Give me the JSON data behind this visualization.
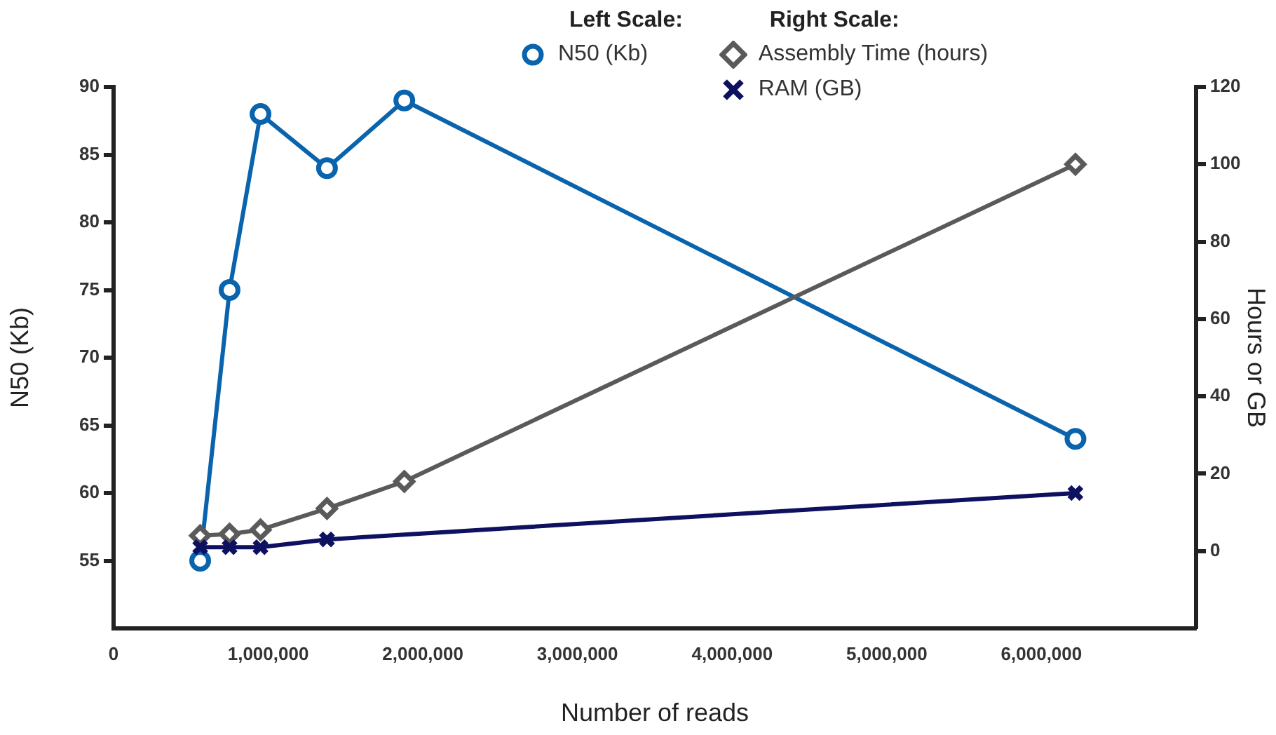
{
  "chart_data": {
    "type": "line",
    "xlabel": "Number of reads",
    "ylabel": "N50 (Kb)",
    "y2label": "Hours or GB",
    "annotations": [
      "Left Scale:",
      "Right Scale:"
    ],
    "xlim": [
      0,
      7000000
    ],
    "xticks": [
      {
        "value": 0,
        "label": "0"
      },
      {
        "value": 1000000,
        "label": "1,000,000"
      },
      {
        "value": 2000000,
        "label": "2,000,000"
      },
      {
        "value": 3000000,
        "label": "3,000,000"
      },
      {
        "value": 4000000,
        "label": "4,000,000"
      },
      {
        "value": 5000000,
        "label": "5,000,000"
      },
      {
        "value": 6000000,
        "label": "6,000,000"
      },
      {
        "value": 7000000,
        "label": null
      }
    ],
    "ylim": [
      50,
      90
    ],
    "yticks": [
      55,
      60,
      65,
      70,
      75,
      80,
      85,
      90
    ],
    "y2lim": [
      -20,
      120
    ],
    "y2ticks": [
      0,
      20,
      40,
      60,
      80,
      100,
      120
    ],
    "grid": false,
    "legend": "top",
    "series": [
      {
        "name": "N50 (Kb)",
        "color": "#0a64ad",
        "marker": "circle",
        "x": [
          560000,
          750000,
          950000,
          1380000,
          1880000,
          6220000
        ],
        "values": [
          55,
          75,
          88,
          84,
          89,
          64
        ]
      },
      {
        "name": "Assembly Time (hours)",
        "color": "#5a5a5a",
        "marker": "diamond",
        "axis": "y2",
        "x": [
          560000,
          750000,
          950000,
          1380000,
          1880000,
          6220000
        ],
        "values": [
          4,
          4.4,
          5.5,
          11,
          18,
          100
        ]
      },
      {
        "name": "RAM (GB)",
        "color": "#0d1160",
        "marker": "cross",
        "axis": "y2",
        "x": [
          560000,
          750000,
          950000,
          1380000,
          6220000
        ],
        "values": [
          1,
          1,
          1,
          3,
          15
        ]
      }
    ]
  }
}
